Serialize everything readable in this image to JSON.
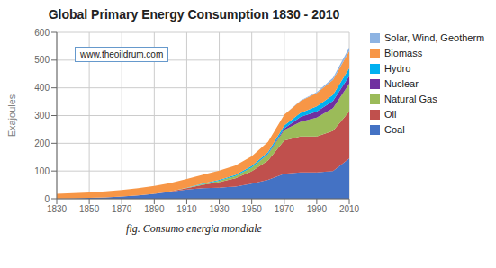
{
  "chart_data": {
    "type": "area",
    "title": "Global Primary Energy Consumption 1830 - 2010",
    "y_label": "Exajoules",
    "annotations": [
      "www.theoildrum.com",
      "fig. Consumo energia mondiale"
    ],
    "x": [
      1830,
      1840,
      1850,
      1860,
      1870,
      1880,
      1890,
      1900,
      1910,
      1920,
      1930,
      1940,
      1950,
      1960,
      1970,
      1980,
      1990,
      2000,
      2010
    ],
    "series": [
      {
        "name": "Coal",
        "color": "#4472C4",
        "values": [
          1,
          2,
          3,
          5,
          8,
          12,
          18,
          25,
          33,
          38,
          40,
          44,
          54,
          68,
          90,
          95,
          95,
          100,
          145
        ]
      },
      {
        "name": "Oil",
        "color": "#C0504D",
        "values": [
          0,
          0,
          0,
          0,
          0,
          0,
          0,
          2,
          5,
          12,
          20,
          30,
          45,
          70,
          120,
          130,
          130,
          145,
          170
        ]
      },
      {
        "name": "Natural Gas",
        "color": "#9BBB59",
        "values": [
          0,
          0,
          0,
          0,
          0,
          0,
          0,
          0,
          1,
          3,
          5,
          8,
          14,
          22,
          38,
          52,
          68,
          82,
          100
        ]
      },
      {
        "name": "Nuclear",
        "color": "#7030A0",
        "values": [
          0,
          0,
          0,
          0,
          0,
          0,
          0,
          0,
          0,
          0,
          0,
          0,
          0,
          1,
          6,
          18,
          22,
          26,
          28
        ]
      },
      {
        "name": "Hydro",
        "color": "#00B0F0",
        "values": [
          0,
          0,
          0,
          0,
          0,
          0,
          0,
          0,
          1,
          2,
          3,
          4,
          5,
          7,
          10,
          15,
          18,
          22,
          28
        ]
      },
      {
        "name": "Biomass",
        "color": "#F79646",
        "values": [
          17,
          18,
          20,
          22,
          24,
          26,
          28,
          30,
          31,
          32,
          33,
          34,
          35,
          37,
          39,
          43,
          48,
          54,
          62
        ]
      },
      {
        "name": "Solar, Wind, Geotherm",
        "color": "#8DB3E2",
        "values": [
          0,
          0,
          0,
          0,
          0,
          0,
          0,
          0,
          0,
          0,
          0,
          0,
          0,
          0,
          0,
          1,
          3,
          7,
          13
        ]
      }
    ],
    "xlim": [
      1830,
      2010
    ],
    "xticks": [
      1830,
      1850,
      1870,
      1890,
      1910,
      1930,
      1950,
      1970,
      1990,
      2010
    ],
    "ylim": [
      0,
      600
    ],
    "yticks": [
      0,
      100,
      200,
      300,
      400,
      500,
      600
    ],
    "grid": true,
    "stacked": true,
    "legend": "right"
  }
}
